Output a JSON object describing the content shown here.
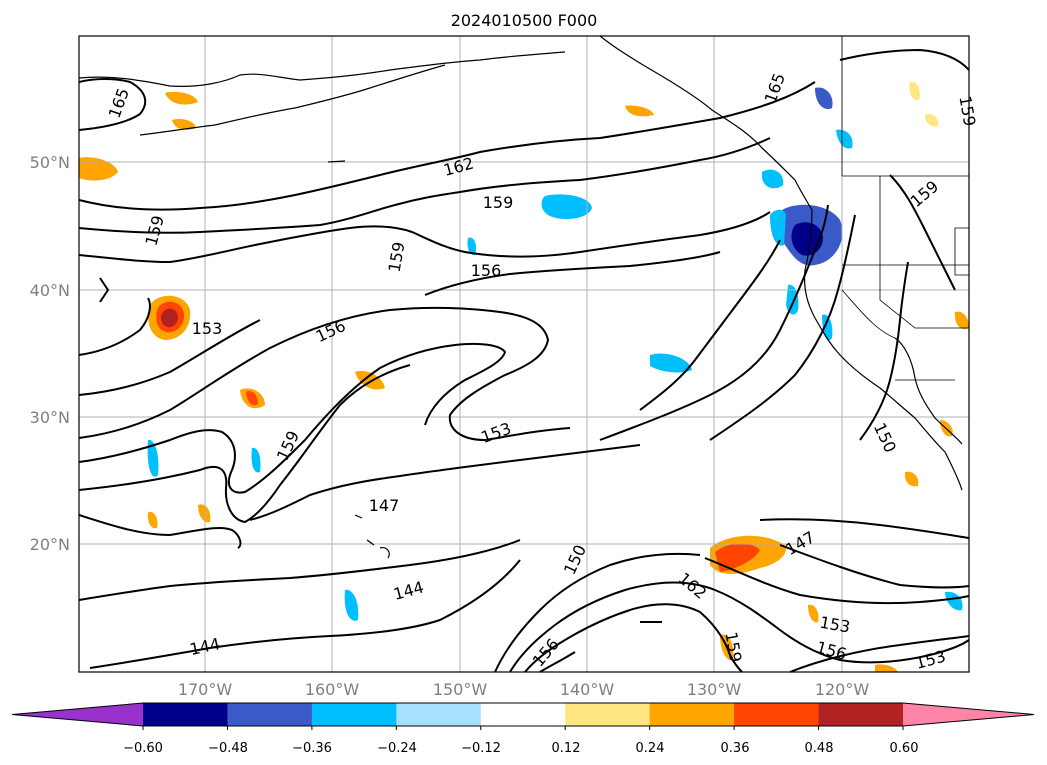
{
  "title": "2024010500 F000",
  "map": {
    "lat_labels": [
      "50°N",
      "40°N",
      "30°N",
      "20°N"
    ],
    "lon_labels": [
      "170°W",
      "160°W",
      "150°W",
      "140°W",
      "130°W",
      "120°W"
    ],
    "grid": true,
    "contour_labels": [
      "165",
      "162",
      "159",
      "159",
      "159",
      "156",
      "156",
      "153",
      "153",
      "159",
      "147",
      "144",
      "144",
      "150",
      "156",
      "162",
      "159",
      "153",
      "156",
      "153",
      "147",
      "150",
      "165",
      "159",
      "159"
    ]
  },
  "colorbar": {
    "ticks": [
      "−0.60",
      "−0.48",
      "−0.36",
      "−0.24",
      "−0.12",
      "0.12",
      "0.24",
      "0.36",
      "0.48",
      "0.60"
    ],
    "colors": [
      "#9932cc",
      "#00008b",
      "#3a5bc7",
      "#00bfff",
      "#a6e0ff",
      "#ffffff",
      "#ffe680",
      "#ffa500",
      "#ff4500",
      "#b22222",
      "#ff85a8"
    ]
  }
}
